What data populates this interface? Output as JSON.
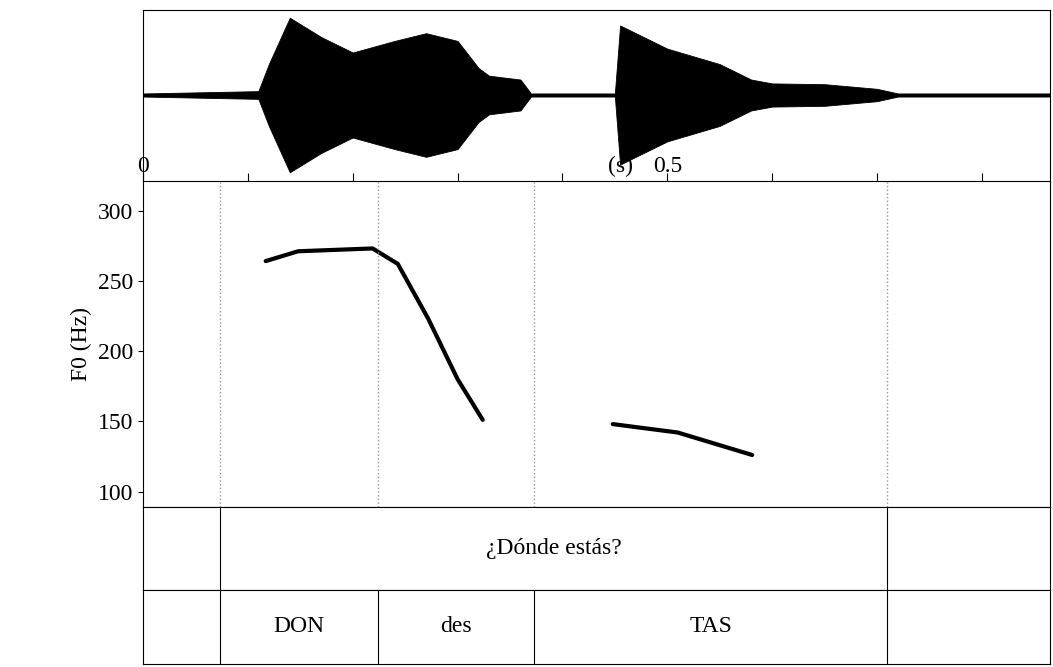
{
  "chart_data": {
    "type": "praat_figure",
    "xlim": [
      0,
      0.865
    ],
    "xticks": [
      0,
      0.5
    ],
    "minor_xticks": [
      0.1,
      0.2,
      0.3,
      0.4,
      0.6,
      0.7,
      0.8
    ],
    "x_unit_label": "(s)",
    "waveform": {
      "ylim": [
        -1.1,
        1.1
      ],
      "times": [
        0,
        0.11,
        0.12,
        0.14,
        0.17,
        0.2,
        0.24,
        0.27,
        0.3,
        0.32,
        0.33,
        0.36,
        0.37,
        0.45,
        0.455,
        0.47,
        0.5,
        0.55,
        0.58,
        0.6,
        0.65,
        0.7,
        0.72,
        0.865
      ],
      "envelope": [
        0.02,
        0.05,
        0.4,
        1.0,
        0.75,
        0.55,
        0.7,
        0.8,
        0.7,
        0.35,
        0.25,
        0.2,
        0.02,
        0.02,
        0.9,
        0.8,
        0.6,
        0.4,
        0.2,
        0.15,
        0.14,
        0.08,
        0.02,
        0.02
      ],
      "color": "#000000"
    },
    "spectrogram": {
      "ylabel": "F0 (Hz)",
      "ylim": [
        89,
        321
      ],
      "yticks": [
        100,
        150,
        200,
        250,
        300
      ],
      "contours": [
        {
          "x": [
            0.117,
            0.148,
            0.219,
            0.243,
            0.272,
            0.3,
            0.324
          ],
          "values": [
            264,
            271,
            273,
            262,
            223,
            180,
            151
          ],
          "color": "#000000"
        },
        {
          "x": [
            0.448,
            0.51,
            0.581
          ],
          "values": [
            148,
            142,
            126
          ],
          "color": "#000000"
        }
      ]
    },
    "boundaries": [
      0.073,
      0.224,
      0.373,
      0.71
    ],
    "tiers": [
      {
        "intervals": [
          {
            "start": 0.073,
            "end": 0.71,
            "text": "¿Dónde estás?"
          }
        ]
      },
      {
        "intervals": [
          {
            "start": 0.073,
            "end": 0.224,
            "text": "DON"
          },
          {
            "start": 0.224,
            "end": 0.373,
            "text": "des"
          },
          {
            "start": 0.373,
            "end": 0.71,
            "text": "TAS"
          }
        ]
      }
    ]
  }
}
